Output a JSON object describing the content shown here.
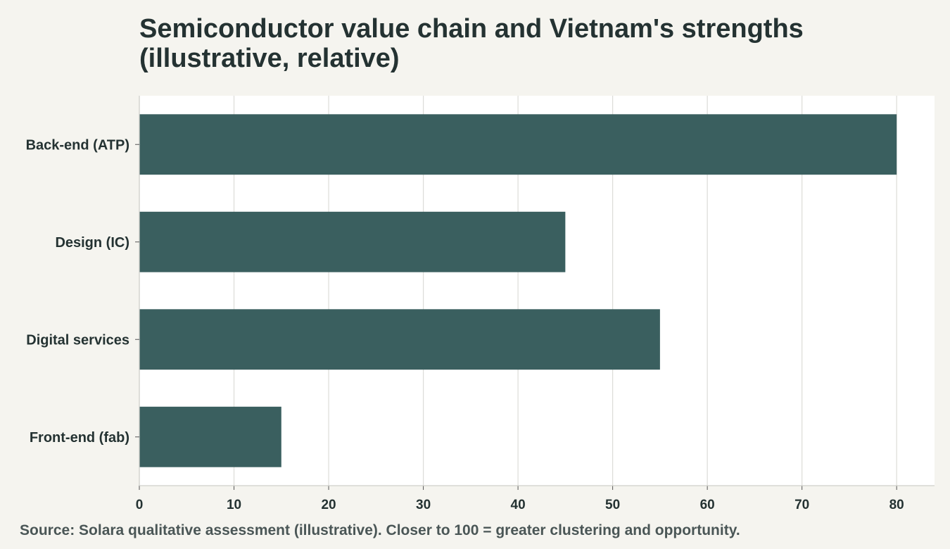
{
  "title_line1": "Semiconductor value chain and Vietnam's strengths",
  "title_line2": "(illustrative, relative)",
  "source": "Source: Solara qualitative assessment (illustrative). Closer to 100 = greater clustering and opportunity.",
  "colors": {
    "bar": "#3a5f5f",
    "grid": "#dcdcd8",
    "plot_bg": "#ffffff",
    "page_bg": "#f5f4ef"
  },
  "chart_data": {
    "type": "bar",
    "orientation": "horizontal",
    "categories": [
      "Back-end (ATP)",
      "Design (IC)",
      "Digital services",
      "Front-end (fab)"
    ],
    "values": [
      80,
      45,
      55,
      15
    ],
    "xlim": [
      0,
      84
    ],
    "xticks": [
      0,
      10,
      20,
      30,
      40,
      50,
      60,
      70,
      80
    ],
    "grid": true
  }
}
